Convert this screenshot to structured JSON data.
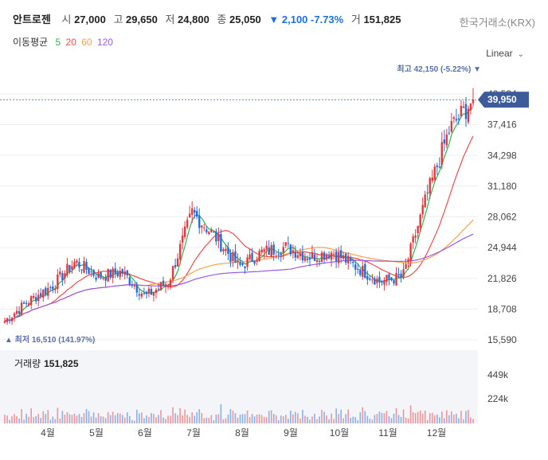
{
  "header": {
    "stock_name": "안트로젠",
    "open_label": "시",
    "open_value": "27,000",
    "high_label": "고",
    "high_value": "29,650",
    "low_label": "저",
    "low_value": "24,800",
    "close_label": "종",
    "close_value": "25,050",
    "change": "▼ 2,100 -7.73%",
    "volume_label": "거",
    "volume_value": "151,825",
    "exchange": "한국거래소(KRX)"
  },
  "ma_legend": {
    "title": "이동평균",
    "periods": [
      "5",
      "20",
      "60",
      "120"
    ]
  },
  "scale_button": {
    "label": "Linear"
  },
  "colors": {
    "up": "#e0393e",
    "down": "#1e6fd9",
    "ma5": "#2db24f",
    "ma20": "#e84c4c",
    "ma60": "#f5a04a",
    "ma120": "#9b59e0",
    "price_tag": "#3d5a99",
    "annotation": "#5a6fa5"
  },
  "annotations": {
    "max_label": "최고 42,150 (-5.22%) ▼",
    "min_label": "▲ 최저 16,510 (141.97%)",
    "last_price": "39,950"
  },
  "volume_panel": {
    "label": "거래량",
    "value": "151,825"
  },
  "chart_data": {
    "type": "candlestick",
    "price_axis": {
      "ticks": [
        "40,534",
        "37,416",
        "34,298",
        "31,180",
        "28,062",
        "24,944",
        "21,826",
        "18,708",
        "15,590"
      ],
      "range": [
        15590,
        40534
      ]
    },
    "volume_axis": {
      "ticks": [
        "449k",
        "224k"
      ]
    },
    "x_labels": [
      "4월",
      "5월",
      "6월",
      "7월",
      "8월",
      "9월",
      "10월",
      "11월",
      "12월"
    ],
    "approx_close_path": [
      [
        "3월 중순",
        17500
      ],
      [
        "4월 초",
        19500
      ],
      [
        "4월 말",
        21000
      ],
      [
        "5월 초",
        23500
      ],
      [
        "5월 말",
        22000
      ],
      [
        "6월 중순",
        22500
      ],
      [
        "6월 말",
        20000
      ],
      [
        "7월 초",
        21500
      ],
      [
        "7월 중순",
        28500
      ],
      [
        "7월 말",
        26000
      ],
      [
        "8월 중순",
        23000
      ],
      [
        "8월 말",
        24500
      ],
      [
        "9월 중순",
        25000
      ],
      [
        "9월 말",
        24000
      ],
      [
        "10월 중순",
        24500
      ],
      [
        "10월 말",
        23000
      ],
      [
        "11월 중순",
        21500
      ],
      [
        "11월 말",
        22000
      ],
      [
        "12월 초",
        30000
      ],
      [
        "12월 중순",
        37000
      ],
      [
        "12월 말",
        39950
      ]
    ],
    "max": {
      "value": 42150,
      "label": "최고"
    },
    "min": {
      "value": 16510,
      "label": "최저"
    },
    "last": 39950,
    "moving_averages": [
      "5",
      "20",
      "60",
      "120"
    ]
  }
}
